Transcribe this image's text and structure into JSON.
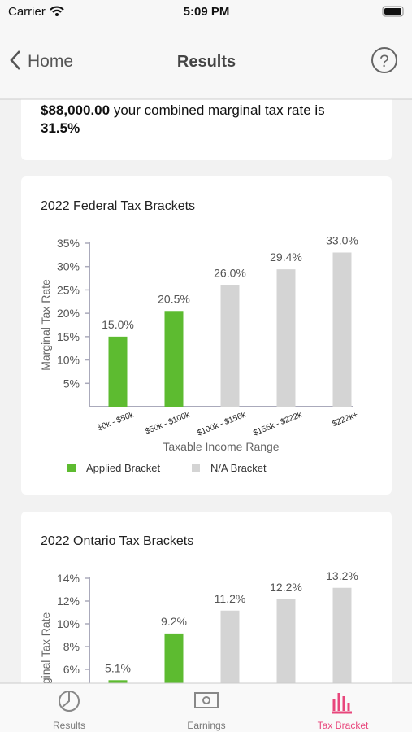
{
  "status_bar": {
    "carrier": "Carrier",
    "time": "5:09 PM"
  },
  "nav": {
    "back": "Home",
    "title": "Results",
    "help": "?"
  },
  "summary": {
    "amount": "$88,000.00",
    "text": " your combined marginal tax rate is",
    "rate": "31.5%"
  },
  "chart_data": [
    {
      "type": "bar",
      "title": "2022 Federal Tax Brackets",
      "y_label": "Marginal Tax Rate",
      "x_label": "Taxable Income Range",
      "categories": [
        "$0k - $50k",
        "$50k - $100k",
        "$100k - $156k",
        "$156k - $222k",
        "$222k+"
      ],
      "values": [
        15.0,
        20.5,
        26.0,
        29.4,
        33.0
      ],
      "value_labels": [
        "15.0%",
        "20.5%",
        "26.0%",
        "29.4%",
        "33.0%"
      ],
      "colors": [
        "#5dbb30",
        "#5dbb30",
        "#d4d4d4",
        "#d4d4d4",
        "#d4d4d4"
      ],
      "ylim": [
        0,
        35
      ],
      "yticks": [
        {
          "value": 5,
          "label": "5%"
        },
        {
          "value": 10,
          "label": "10%"
        },
        {
          "value": 15,
          "label": "15%"
        },
        {
          "value": 20,
          "label": "20%"
        },
        {
          "value": 25,
          "label": "25%"
        },
        {
          "value": 30,
          "label": "30%"
        },
        {
          "value": 35,
          "label": "35%"
        }
      ],
      "legend": [
        {
          "name": "Applied Bracket",
          "color": "#5dbb30"
        },
        {
          "name": "N/A Bracket",
          "color": "#d4d4d4"
        }
      ]
    },
    {
      "type": "bar",
      "title": "2022 Ontario Tax Brackets",
      "y_label": "Marginal Tax Rate",
      "values": [
        5.05,
        9.15,
        11.16,
        12.16,
        13.16
      ],
      "value_labels": [
        "5.1%",
        "9.2%",
        "11.2%",
        "12.2%",
        "13.2%"
      ],
      "colors": [
        "#5dbb30",
        "#5dbb30",
        "#d4d4d4",
        "#d4d4d4",
        "#d4d4d4"
      ],
      "ylim": [
        0,
        14
      ],
      "yticks": [
        {
          "value": 6,
          "label": "6%"
        },
        {
          "value": 8,
          "label": "8%"
        },
        {
          "value": 10,
          "label": "10%"
        },
        {
          "value": 12,
          "label": "12%"
        },
        {
          "value": 14,
          "label": "14%"
        }
      ]
    }
  ],
  "tab_bar": {
    "items": [
      "Results",
      "Earnings",
      "Tax Bracket"
    ],
    "active": 2
  }
}
